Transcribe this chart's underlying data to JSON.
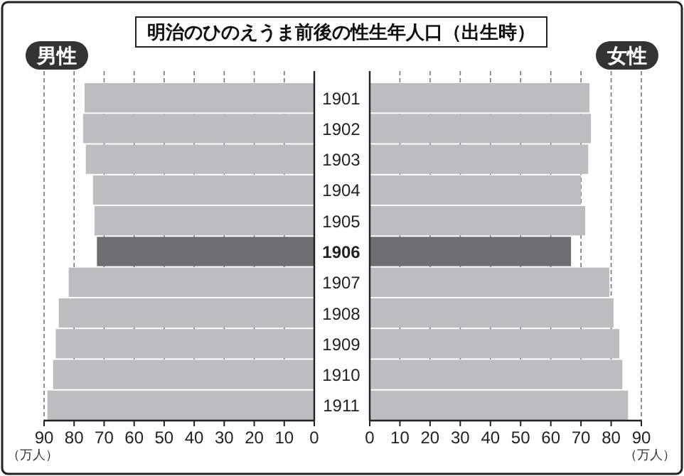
{
  "chart_data": [
    {
      "type": "bar",
      "orientation": "horizontal",
      "title": "明治のひのえうま前後の性生年人口（出生時）",
      "subtitle": "男性",
      "categories": [
        "1901",
        "1902",
        "1903",
        "1904",
        "1905",
        "1906",
        "1907",
        "1908",
        "1909",
        "1910",
        "1911"
      ],
      "values": [
        76.5,
        77.0,
        76.1,
        73.7,
        73.2,
        72.4,
        81.8,
        85.1,
        86.1,
        87.0,
        88.9
      ],
      "colors": [
        "#bcbdc0",
        "#bcbdc0",
        "#bcbdc0",
        "#bcbdc0",
        "#bcbdc0",
        "#6d6e72",
        "#bcbdc0",
        "#bcbdc0",
        "#bcbdc0",
        "#bcbdc0",
        "#bcbdc0"
      ],
      "xlim": [
        90,
        0
      ],
      "xticks": [
        90,
        80,
        70,
        60,
        50,
        40,
        30,
        20,
        10,
        0
      ],
      "grid": "x",
      "line_style": "dashed",
      "annotations": [
        "（万人）"
      ]
    },
    {
      "type": "bar",
      "orientation": "horizontal",
      "subtitle": "女性",
      "categories": [
        "1901",
        "1902",
        "1903",
        "1904",
        "1905",
        "1906",
        "1907",
        "1908",
        "1909",
        "1910",
        "1911"
      ],
      "values": [
        72.8,
        73.3,
        72.4,
        70.0,
        71.4,
        66.7,
        79.4,
        80.8,
        82.7,
        83.7,
        85.6
      ],
      "colors": [
        "#bcbdc0",
        "#bcbdc0",
        "#bcbdc0",
        "#bcbdc0",
        "#bcbdc0",
        "#6d6e72",
        "#bcbdc0",
        "#bcbdc0",
        "#bcbdc0",
        "#bcbdc0",
        "#bcbdc0"
      ],
      "xlim": [
        0,
        90
      ],
      "xticks": [
        0,
        10,
        20,
        30,
        40,
        50,
        60,
        70,
        80,
        90
      ],
      "grid": "x",
      "line_style": "dashed",
      "tick_labels": "x",
      "annotations": [
        "（万人）"
      ]
    }
  ]
}
